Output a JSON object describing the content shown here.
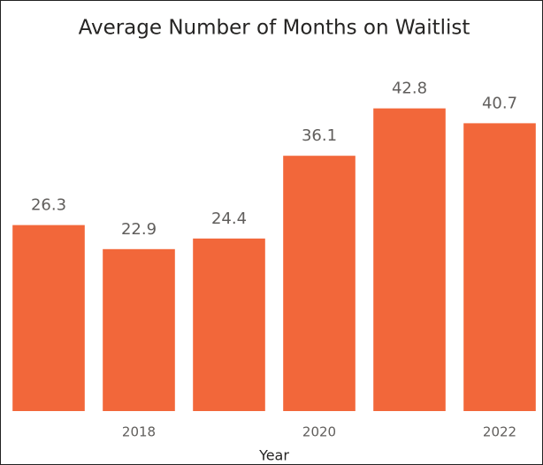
{
  "chart_data": {
    "type": "bar",
    "title": "Average Number of Months on Waitlist",
    "x_label": "Year",
    "categories": [
      null,
      "2018",
      null,
      "2020",
      null,
      "2022"
    ],
    "values": [
      26.3,
      22.9,
      24.4,
      36.1,
      42.8,
      40.7
    ],
    "color": "#f2673a",
    "ylim": [
      0,
      45
    ]
  }
}
